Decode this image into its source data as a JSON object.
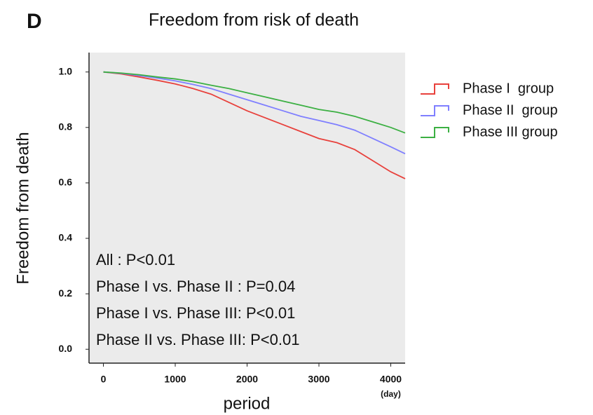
{
  "chart_data": {
    "type": "line",
    "panel_label": "D",
    "title": "Freedom from risk of death",
    "y_label": "Freedom from death",
    "x_label": "period",
    "x_unit": "(day)",
    "annotations": [
      "All : P<0.01",
      "Phase I  vs. Phase II : P=0.04",
      "Phase I  vs. Phase III: P<0.01",
      "Phase II vs. Phase III: P<0.01"
    ],
    "x": [
      0,
      250,
      500,
      750,
      1000,
      1250,
      1500,
      1750,
      2000,
      2250,
      2500,
      2750,
      3000,
      3250,
      3500,
      3750,
      4000,
      4200
    ],
    "series": [
      {
        "name": "Phase I  group",
        "color": "#e8413c",
        "values": [
          1.0,
          0.993,
          0.982,
          0.97,
          0.957,
          0.94,
          0.92,
          0.89,
          0.86,
          0.835,
          0.81,
          0.785,
          0.76,
          0.745,
          0.72,
          0.68,
          0.64,
          0.615
        ]
      },
      {
        "name": "Phase II  group",
        "color": "#7f7fff",
        "values": [
          1.0,
          0.995,
          0.987,
          0.978,
          0.968,
          0.955,
          0.94,
          0.92,
          0.9,
          0.88,
          0.86,
          0.84,
          0.825,
          0.81,
          0.79,
          0.76,
          0.73,
          0.705
        ]
      },
      {
        "name": "Phase III group",
        "color": "#3cb043",
        "values": [
          1.0,
          0.996,
          0.99,
          0.982,
          0.975,
          0.965,
          0.952,
          0.94,
          0.925,
          0.91,
          0.895,
          0.88,
          0.865,
          0.855,
          0.84,
          0.82,
          0.8,
          0.78
        ]
      }
    ],
    "xlim": [
      -200,
      4200
    ],
    "ylim": [
      -0.05,
      1.07
    ],
    "xticks": [
      0,
      1000,
      2000,
      3000,
      4000
    ],
    "yticks": [
      {
        "value": 0,
        "label": "0.0"
      },
      {
        "value": 0.2,
        "label": "0.2"
      },
      {
        "value": 0.4,
        "label": "0.4"
      },
      {
        "value": 0.6,
        "label": "0.6"
      },
      {
        "value": 0.8,
        "label": "0.8"
      },
      {
        "value": 1,
        "label": "1.0"
      }
    ],
    "background": "#ebebeb",
    "legend": "right"
  }
}
